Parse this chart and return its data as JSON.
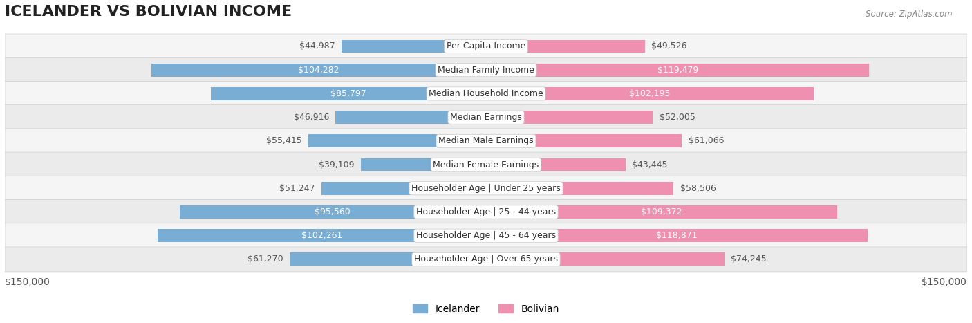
{
  "title": "ICELANDER VS BOLIVIAN INCOME",
  "source": "Source: ZipAtlas.com",
  "categories": [
    "Per Capita Income",
    "Median Family Income",
    "Median Household Income",
    "Median Earnings",
    "Median Male Earnings",
    "Median Female Earnings",
    "Householder Age | Under 25 years",
    "Householder Age | 25 - 44 years",
    "Householder Age | 45 - 64 years",
    "Householder Age | Over 65 years"
  ],
  "icelander_values": [
    44987,
    104282,
    85797,
    46916,
    55415,
    39109,
    51247,
    95560,
    102261,
    61270
  ],
  "bolivian_values": [
    49526,
    119479,
    102195,
    52005,
    61066,
    43445,
    58506,
    109372,
    118871,
    74245
  ],
  "icelander_labels": [
    "$44,987",
    "$104,282",
    "$85,797",
    "$46,916",
    "$55,415",
    "$39,109",
    "$51,247",
    "$95,560",
    "$102,261",
    "$61,270"
  ],
  "bolivian_labels": [
    "$49,526",
    "$119,479",
    "$102,195",
    "$52,005",
    "$61,066",
    "$43,445",
    "$58,506",
    "$109,372",
    "$118,871",
    "$74,245"
  ],
  "icelander_color": "#7aadd4",
  "bolivian_color": "#f090b0",
  "icelander_color_dark": "#5b9ec9",
  "bolivian_color_dark": "#e8608a",
  "icelander_label_color_thresh": 80000,
  "bolivian_label_color_thresh": 80000,
  "max_value": 150000,
  "x_label_left": "$150,000",
  "x_label_right": "$150,000",
  "legend_icelander": "Icelander",
  "legend_bolivian": "Bolivian",
  "bar_height": 0.55,
  "row_bg_color": "#f0f0f0",
  "row_bg_color_alt": "#e8e8e8",
  "background_color": "#ffffff",
  "title_fontsize": 16,
  "label_fontsize": 9,
  "category_fontsize": 9,
  "axis_label_fontsize": 10
}
